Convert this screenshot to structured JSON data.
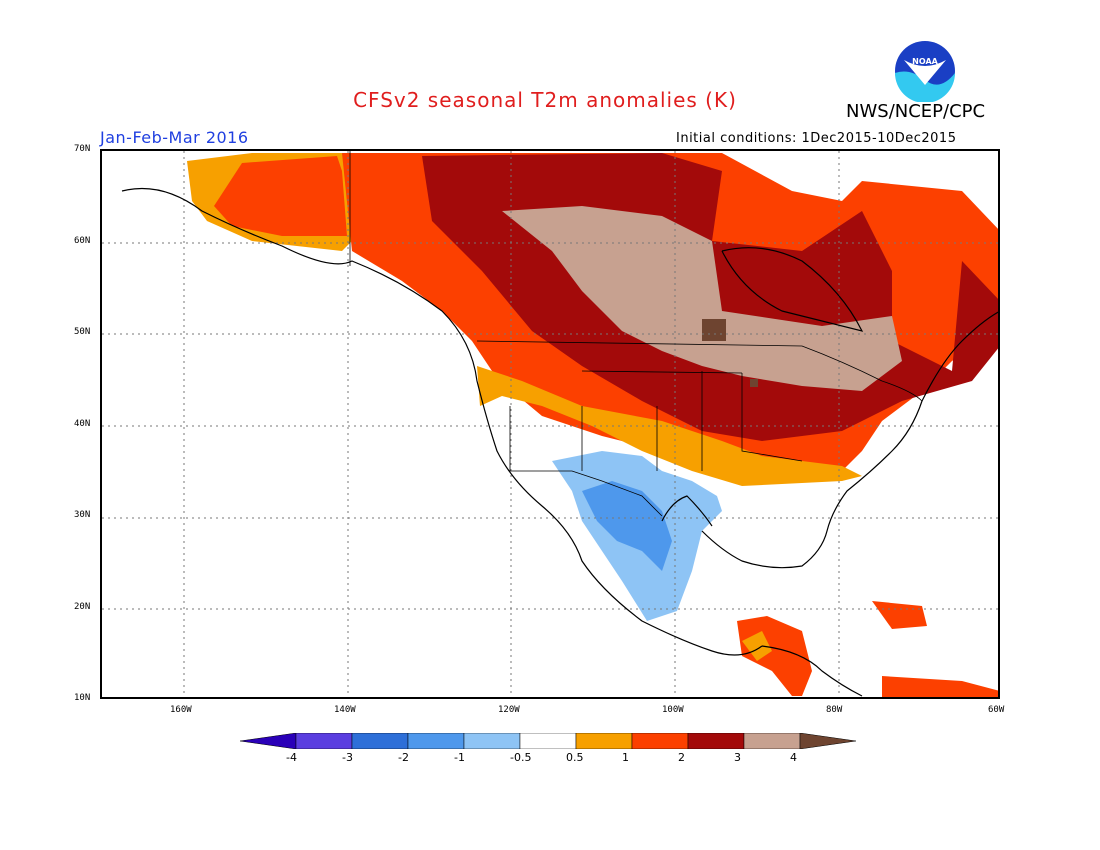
{
  "header": {
    "title": "CFSv2 seasonal T2m anomalies (K)",
    "agency": "NWS/NCEP/CPC",
    "period": "Jan-Feb-Mar 2016",
    "initial_conditions": "Initial conditions: 1Dec2015-10Dec2015",
    "logo_text": "NOAA"
  },
  "map": {
    "lat_ticks": [
      "70N",
      "60N",
      "50N",
      "40N",
      "30N",
      "20N",
      "10N"
    ],
    "lon_ticks": [
      "160W",
      "140W",
      "120W",
      "100W",
      "80W",
      "60W"
    ],
    "lon_range": [
      -170,
      -60
    ],
    "lat_range": [
      10,
      70
    ]
  },
  "colorbar": {
    "labels": [
      "-4",
      "-3",
      "-2",
      "-1",
      "-0.5",
      "0.5",
      "1",
      "2",
      "3",
      "4"
    ],
    "colors": [
      "#2a00b8",
      "#5a3ee0",
      "#2e6fd8",
      "#4e98ec",
      "#8ec4f5",
      "#ffffff",
      "#f7a000",
      "#fc4000",
      "#a30a0a",
      "#c7a190",
      "#6e4430"
    ]
  },
  "regions": [
    {
      "name": "alaska-warm",
      "category": "1-2"
    },
    {
      "name": "northern-canada-warm",
      "category": "2-3"
    },
    {
      "name": "central-canada-warm",
      "category": "3-4"
    },
    {
      "name": "southwest-us-mexico-cool",
      "category": "-1 to -0.5"
    }
  ]
}
